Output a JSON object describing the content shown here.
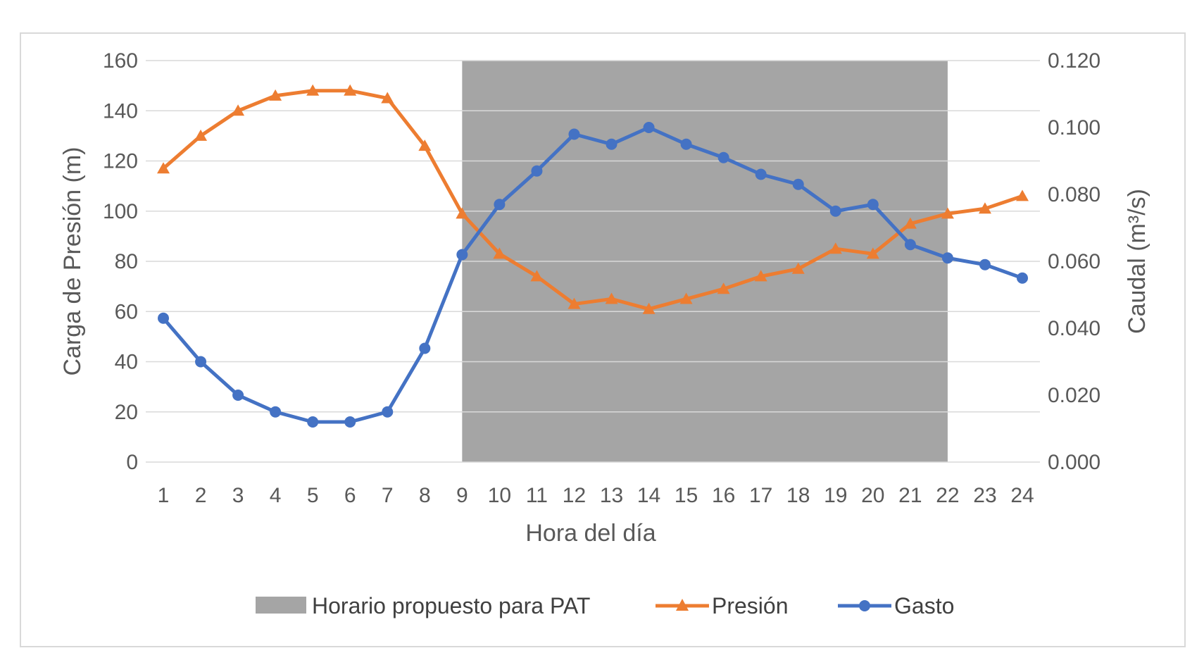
{
  "chart_data": {
    "type": "line",
    "x": [
      1,
      2,
      3,
      4,
      5,
      6,
      7,
      8,
      9,
      10,
      11,
      12,
      13,
      14,
      15,
      16,
      17,
      18,
      19,
      20,
      21,
      22,
      23,
      24
    ],
    "xlabel": "Hora del día",
    "ylabel": "Carga de Presión (m)",
    "y2label": "Caudal (m³/s)",
    "ylim": [
      0,
      160
    ],
    "y2lim": [
      0,
      0.12
    ],
    "yticks": [
      "0",
      "20",
      "40",
      "60",
      "80",
      "100",
      "120",
      "140",
      "160"
    ],
    "y2ticks": [
      "0.000",
      "0.020",
      "0.040",
      "0.060",
      "0.080",
      "0.100",
      "0.120"
    ],
    "grid": true,
    "legend_position": "bottom",
    "shaded_region": {
      "name": "Horario propuesto para PAT",
      "x_start": 9,
      "x_end": 22,
      "color": "#a5a5a5"
    },
    "series": [
      {
        "name": "Presión",
        "axis": "left",
        "marker": "triangle",
        "color": "#ed7d31",
        "values": [
          117,
          130,
          140,
          146,
          148,
          148,
          145,
          126,
          99,
          83,
          74,
          63,
          65,
          61,
          65,
          69,
          74,
          77,
          85,
          83,
          95,
          99,
          101,
          106
        ]
      },
      {
        "name": "Gasto",
        "axis": "right",
        "marker": "circle",
        "color": "#4472c4",
        "values": [
          0.043,
          0.03,
          0.02,
          0.015,
          0.012,
          0.012,
          0.015,
          0.034,
          0.062,
          0.077,
          0.087,
          0.098,
          0.095,
          0.1,
          0.095,
          0.091,
          0.086,
          0.083,
          0.075,
          0.077,
          0.065,
          0.061,
          0.059,
          0.055
        ]
      }
    ]
  }
}
